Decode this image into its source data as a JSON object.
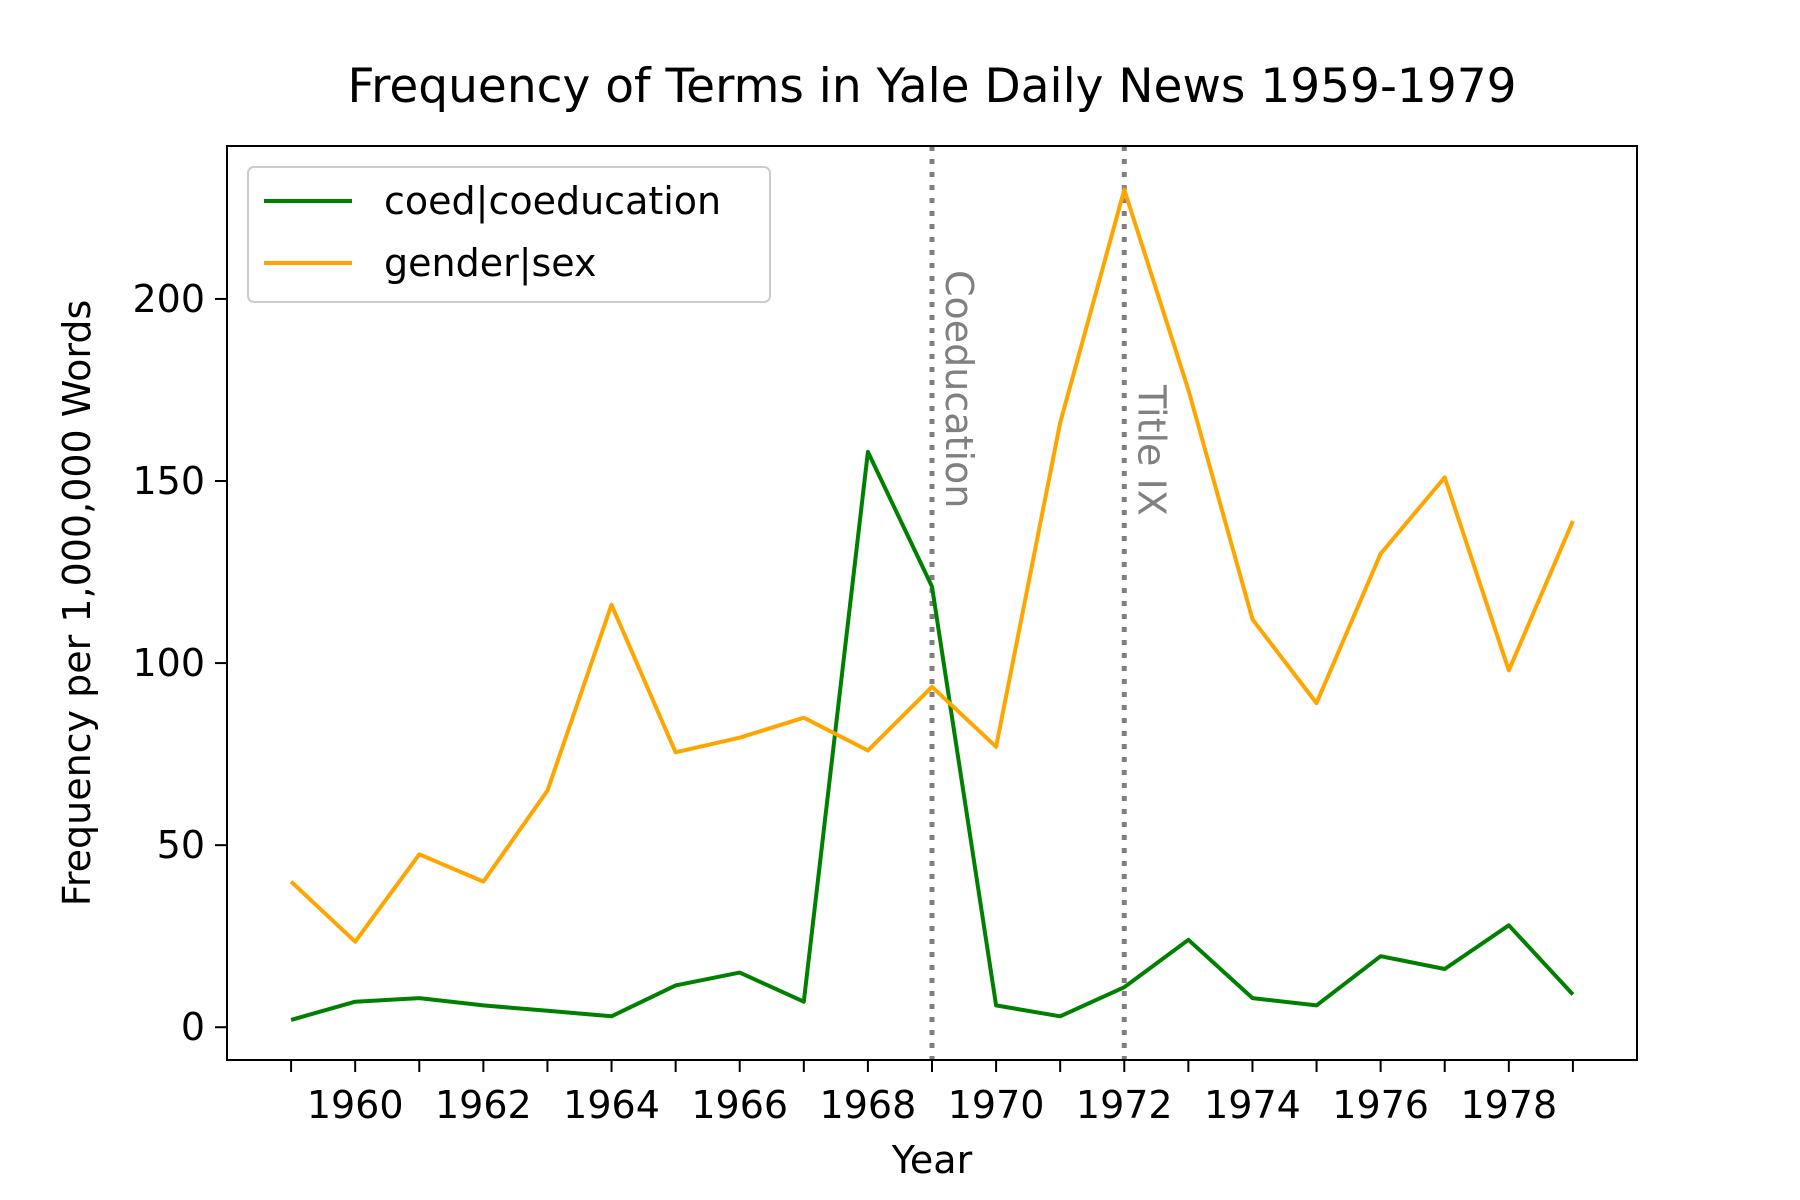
{
  "chart_data": {
    "type": "line",
    "title": "Frequency of Terms in Yale Daily News 1959-1979",
    "xlabel": "Year",
    "ylabel": "Frequency per 1,000,000 Words",
    "x": [
      1959,
      1960,
      1961,
      1962,
      1963,
      1964,
      1965,
      1966,
      1967,
      1968,
      1969,
      1970,
      1971,
      1972,
      1973,
      1974,
      1975,
      1976,
      1977,
      1978,
      1979
    ],
    "xlim": [
      1958,
      1980
    ],
    "ylim": [
      -9,
      242
    ],
    "xticks": [
      1960,
      1962,
      1964,
      1966,
      1968,
      1970,
      1972,
      1974,
      1976,
      1978
    ],
    "yticks": [
      0,
      50,
      100,
      150,
      200
    ],
    "series": [
      {
        "name": "coed|coeducation",
        "color": "#008000",
        "values": [
          2,
          7,
          8,
          6,
          4.5,
          3,
          11.5,
          15,
          7,
          158,
          121,
          6,
          3,
          11,
          24,
          8,
          6,
          19.5,
          16,
          28,
          9
        ]
      },
      {
        "name": "gender|sex",
        "color": "#ffa500",
        "values": [
          40,
          23.5,
          47.5,
          40,
          65,
          116,
          75.5,
          79.5,
          85,
          76,
          93.5,
          77,
          166,
          230,
          175,
          112,
          89,
          130,
          151,
          98,
          139
        ]
      }
    ],
    "annotations": [
      {
        "x": 1969,
        "label": "Coeducation",
        "color": "#808080"
      },
      {
        "x": 1972,
        "label": "Title IX",
        "color": "#808080"
      }
    ],
    "grid": false,
    "legend": "upper-left"
  }
}
